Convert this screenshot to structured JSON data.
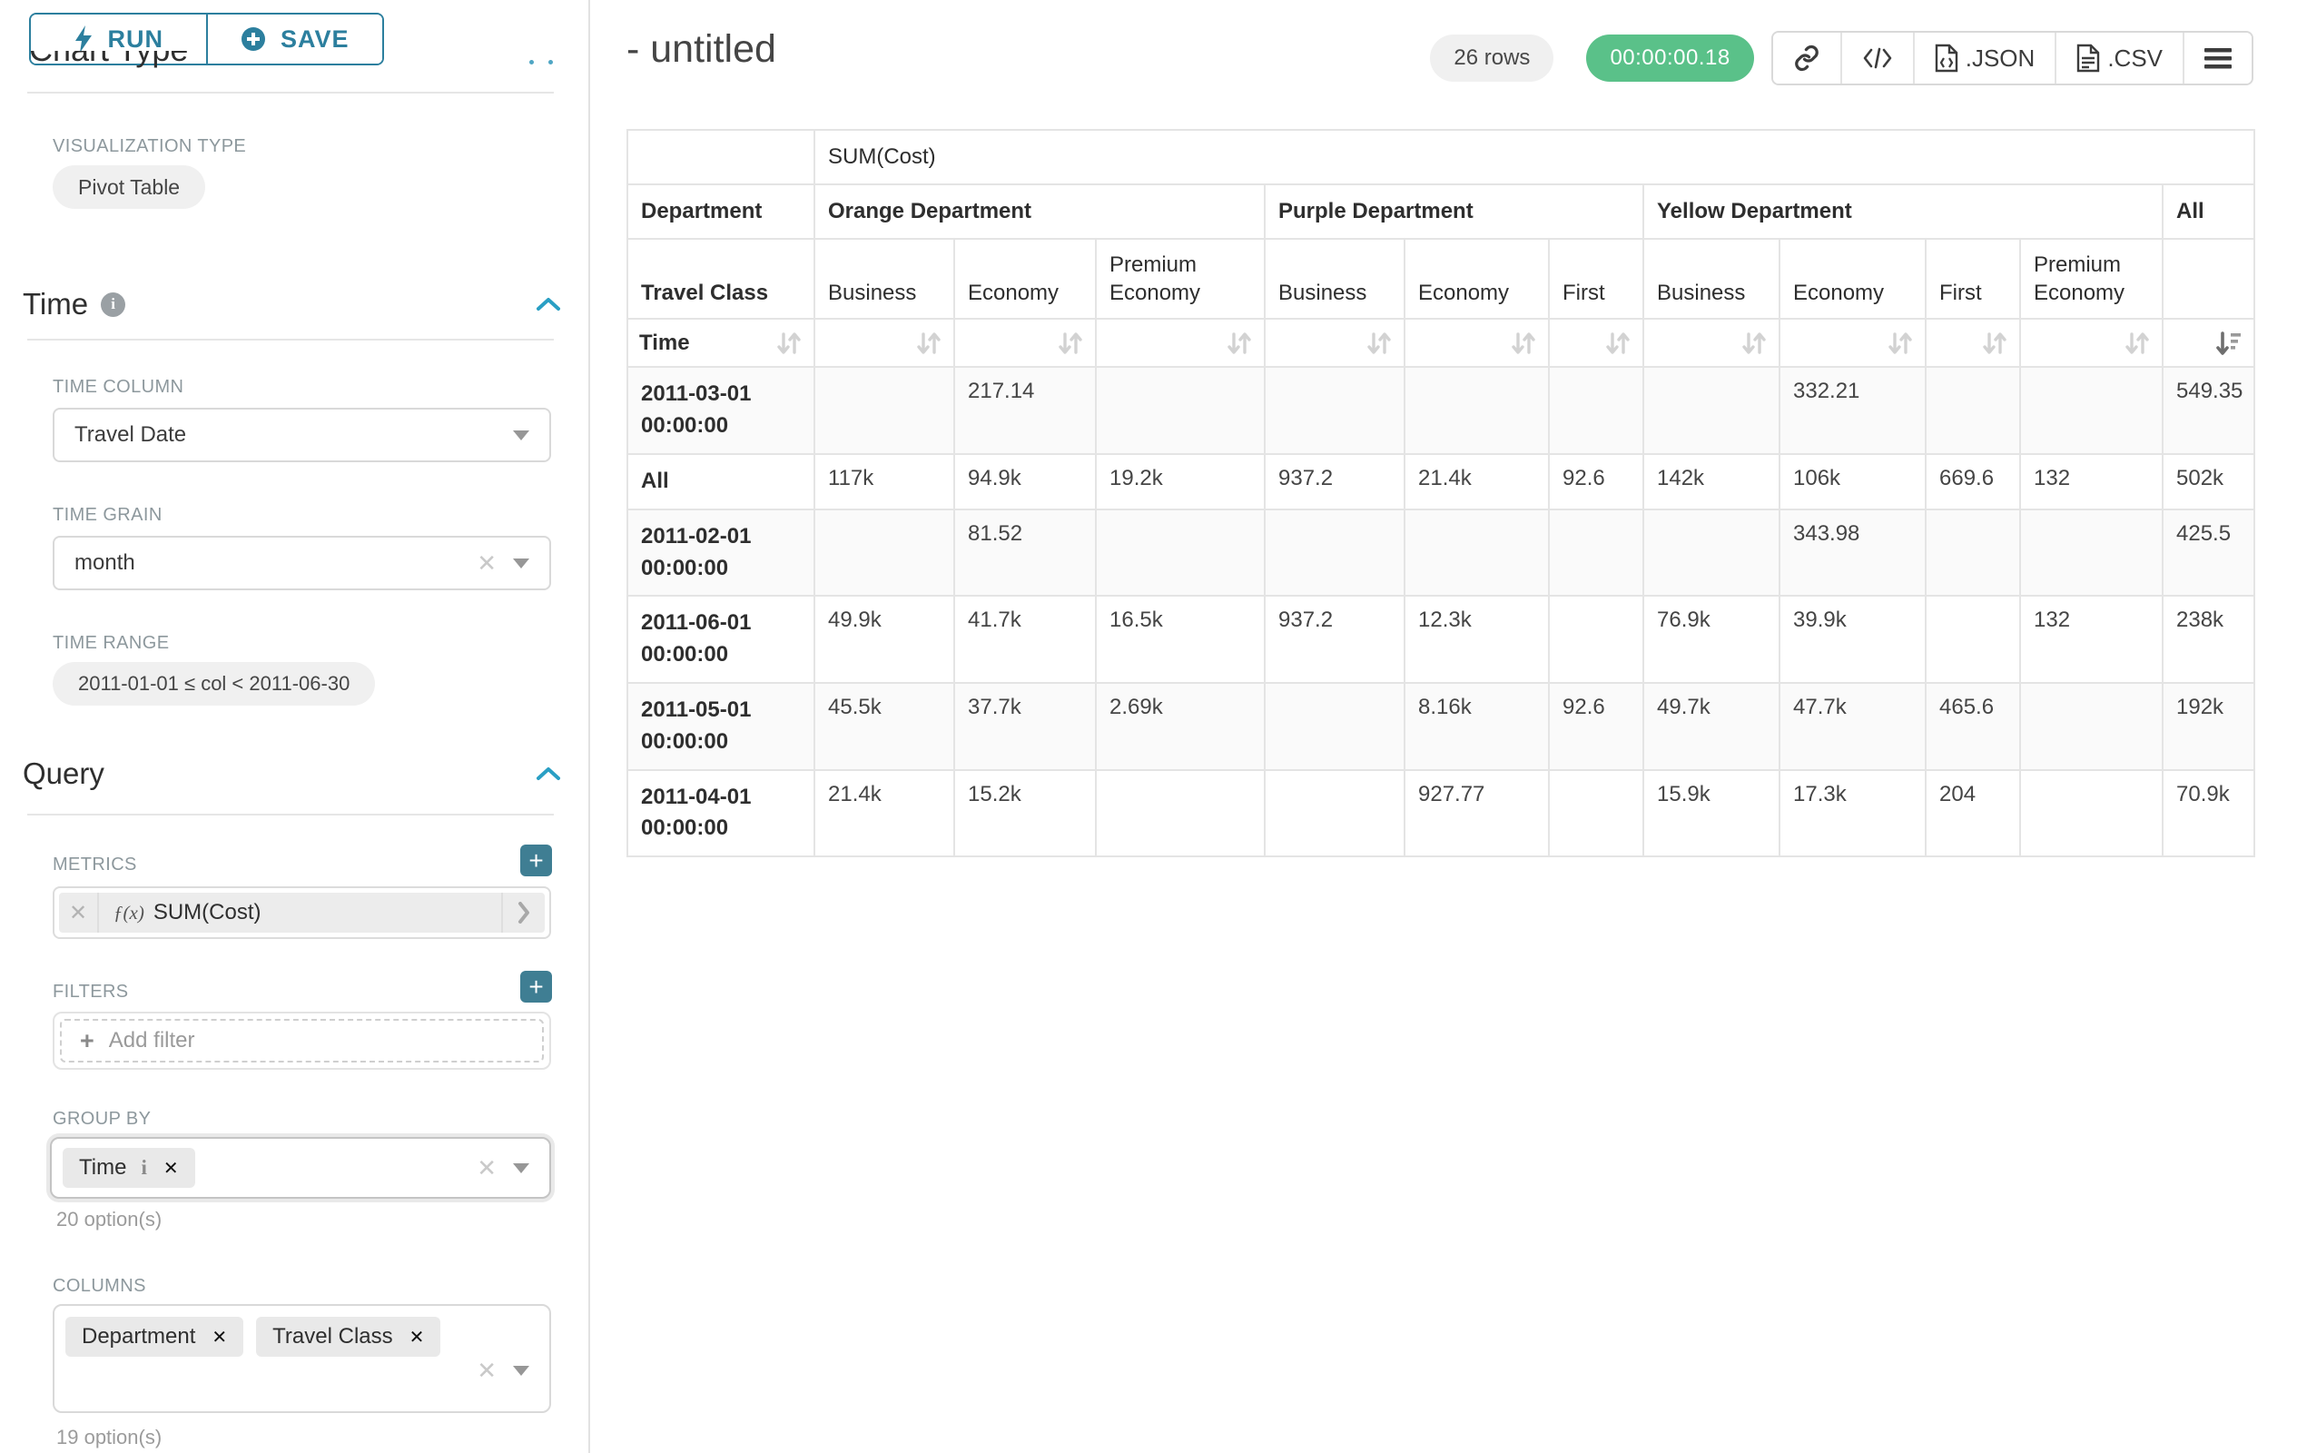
{
  "colors": {
    "accent": "#2c7f9e",
    "plus_button": "#3f7e93",
    "timer_bg": "#5ac189",
    "table_border": "#e4e4e4",
    "chevron_blue": "#2a9fc4"
  },
  "panel": {
    "run_label": "RUN",
    "save_label": "SAVE",
    "chart_type_heading": "Chart Type",
    "viz_type_label": "VISUALIZATION TYPE",
    "viz_type_value": "Pivot Table",
    "time_section": {
      "title": "Time",
      "time_column_label": "TIME COLUMN",
      "time_column_value": "Travel Date",
      "time_grain_label": "TIME GRAIN",
      "time_grain_value": "month",
      "time_range_label": "TIME RANGE",
      "time_range_value": "2011-01-01 ≤ col < 2011-06-30"
    },
    "query_section": {
      "title": "Query",
      "metrics_label": "METRICS",
      "metric_fx": "ƒ(x)",
      "metric_value": "SUM(Cost)",
      "filters_label": "FILTERS",
      "add_filter_label": "Add filter",
      "group_by_label": "GROUP BY",
      "group_by_chips": [
        {
          "label": "Time",
          "has_info": true
        }
      ],
      "group_by_hint": "20 option(s)",
      "columns_label": "COLUMNS",
      "columns_chips": [
        {
          "label": "Department"
        },
        {
          "label": "Travel Class"
        }
      ],
      "columns_hint": "19 option(s)"
    }
  },
  "header": {
    "title": "- untitled",
    "row_count": "26 rows",
    "duration": "00:00:00.18",
    "export_json_label": ".JSON",
    "export_csv_label": ".CSV"
  },
  "pivot_table": {
    "metric_header": "SUM(Cost)",
    "row_dim_label": "Department",
    "column_groups": [
      {
        "label": "Orange Department",
        "span": 3
      },
      {
        "label": "Purple Department",
        "span": 3
      },
      {
        "label": "Yellow Department",
        "span": 4
      },
      {
        "label": "All",
        "span": 1
      }
    ],
    "second_dim_label": "Travel Class",
    "columns": [
      "Business",
      "Economy",
      "Premium Economy",
      "Business",
      "Economy",
      "First",
      "Business",
      "Economy",
      "First",
      "Premium Economy",
      ""
    ],
    "sort_row_label": "Time",
    "sorted_column_index": 10,
    "rows": [
      {
        "label": "2011-03-01 00:00:00",
        "values": [
          "",
          "217.14",
          "",
          "",
          "",
          "",
          "",
          "332.21",
          "",
          "",
          "549.35"
        ]
      },
      {
        "label": "All",
        "values": [
          "117k",
          "94.9k",
          "19.2k",
          "937.2",
          "21.4k",
          "92.6",
          "142k",
          "106k",
          "669.6",
          "132",
          "502k"
        ]
      },
      {
        "label": "2011-02-01 00:00:00",
        "values": [
          "",
          "81.52",
          "",
          "",
          "",
          "",
          "",
          "343.98",
          "",
          "",
          "425.5"
        ]
      },
      {
        "label": "2011-06-01 00:00:00",
        "values": [
          "49.9k",
          "41.7k",
          "16.5k",
          "937.2",
          "12.3k",
          "",
          "76.9k",
          "39.9k",
          "",
          "132",
          "238k"
        ]
      },
      {
        "label": "2011-05-01 00:00:00",
        "values": [
          "45.5k",
          "37.7k",
          "2.69k",
          "",
          "8.16k",
          "92.6",
          "49.7k",
          "47.7k",
          "465.6",
          "",
          "192k"
        ]
      },
      {
        "label": "2011-04-01 00:00:00",
        "values": [
          "21.4k",
          "15.2k",
          "",
          "",
          "927.77",
          "",
          "15.9k",
          "17.3k",
          "204",
          "",
          "70.9k"
        ]
      }
    ]
  }
}
